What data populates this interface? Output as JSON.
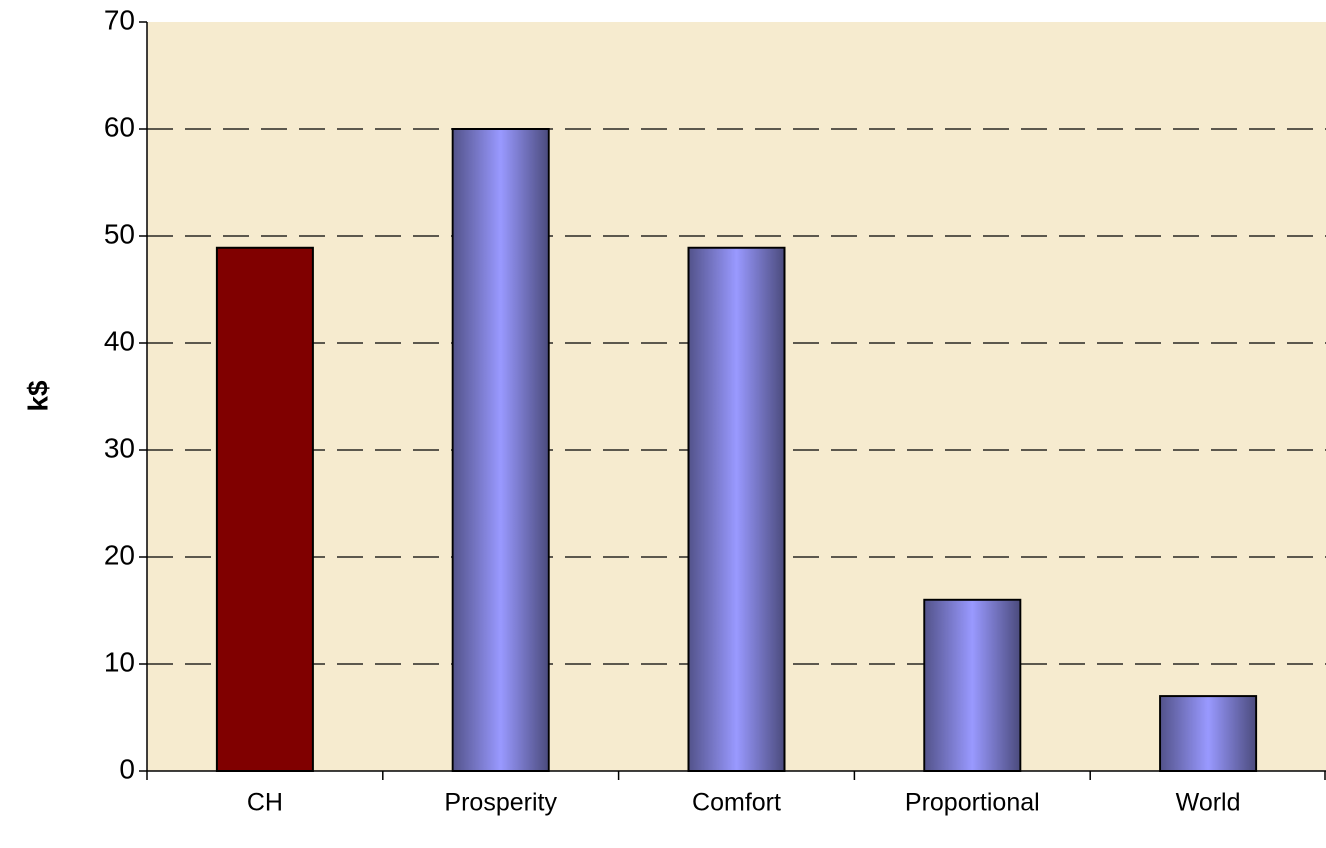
{
  "chart_data": {
    "type": "bar",
    "y_label": "k$",
    "categories": [
      "CH",
      "Prosperity",
      "Comfort",
      "Proportional",
      "World"
    ],
    "values": [
      48.9,
      60,
      48.9,
      16,
      7
    ],
    "colors": [
      "#800000",
      "#9999ff",
      "#9999ff",
      "#9999ff",
      "#9999ff"
    ],
    "shading": [
      false,
      true,
      true,
      true,
      true
    ],
    "ylim": [
      0,
      70
    ],
    "yticks": [
      0,
      10,
      20,
      30,
      40,
      50,
      60,
      70
    ],
    "grid": true
  }
}
